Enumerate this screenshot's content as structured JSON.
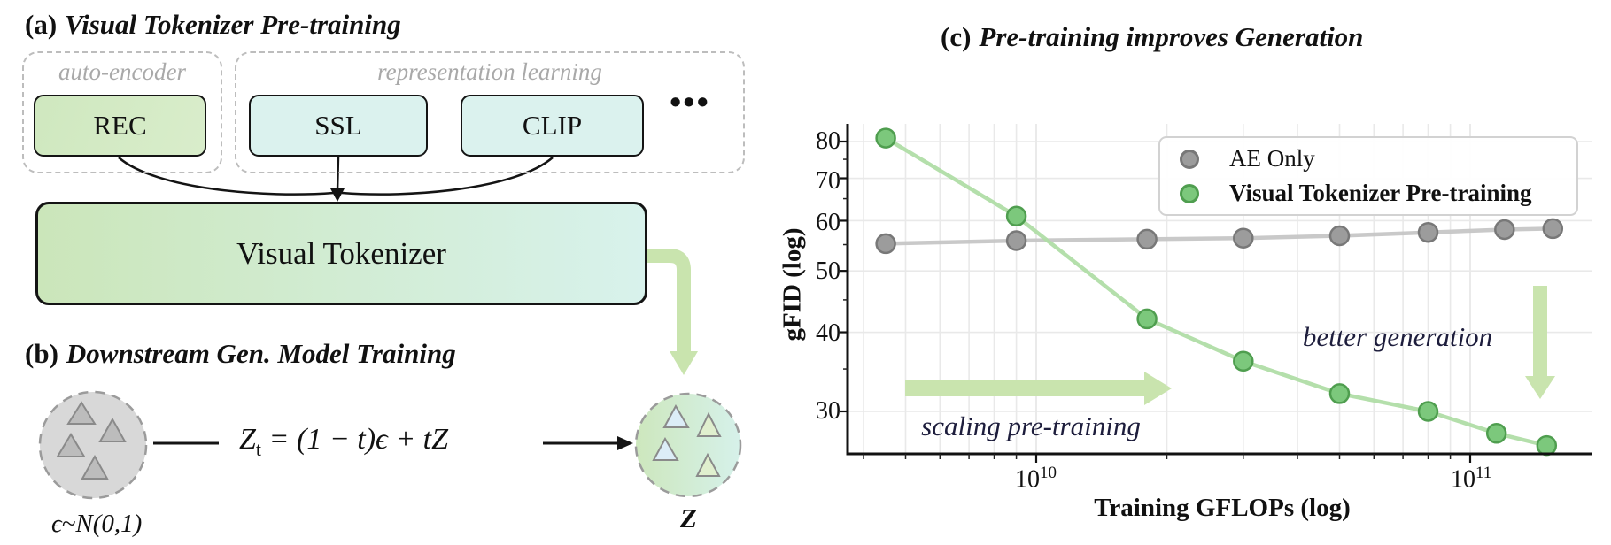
{
  "panel_a": {
    "title_prefix": "(a)",
    "title": "Visual Tokenizer Pre-training",
    "auto_encoder_group": {
      "label": "auto-encoder",
      "box": "REC"
    },
    "repr_learning_group": {
      "label": "representation learning",
      "boxes": [
        "SSL",
        "CLIP"
      ],
      "ellipsis": "•••"
    },
    "tokenizer_box": "Visual Tokenizer"
  },
  "panel_b": {
    "title_prefix": "(b)",
    "title": "Downstream Gen. Model Training",
    "noise_label": "ϵ~N(0,1)",
    "equation": {
      "var": "Z",
      "sub": "t",
      "rest": " = (1 − t)ϵ + tZ"
    },
    "latent_label": "Z"
  },
  "panel_c": {
    "title_prefix": "(c)",
    "title": "Pre-training improves Generation"
  },
  "chart_data": {
    "type": "line",
    "xlabel": "Training GFLOPs (log)",
    "ylabel": "gFID (log)",
    "x_scale": "log",
    "y_scale": "log",
    "x_range": [
      3700000000.0,
      190000000000.0
    ],
    "y_range": [
      25.5,
      86
    ],
    "y_ticks": [
      80,
      70,
      60,
      50,
      40,
      30
    ],
    "y_minor_ticks": [
      75,
      65,
      55,
      45,
      35
    ],
    "x_ticks": [
      {
        "base": "10",
        "exp": "10",
        "value": 10000000000.0
      },
      {
        "base": "10",
        "exp": "11",
        "value": 100000000000.0
      }
    ],
    "grid": true,
    "legend_position": "upper right",
    "series": [
      {
        "name": "AE Only",
        "marker_color": "#9c9c9c",
        "edge_color": "#787878",
        "line_color": "#c6c6c6",
        "x": [
          4500000000.0,
          9000000000.0,
          18000000000.0,
          30000000000.0,
          50000000000.0,
          80000000000.0,
          120000000000.0,
          155000000000.0
        ],
        "y": [
          55.2,
          55.8,
          56.1,
          56.3,
          56.8,
          57.5,
          58.1,
          58.3
        ]
      },
      {
        "name": "Visual Tokenizer Pre-training",
        "marker_color": "#7cc87c",
        "edge_color": "#4f9e4f",
        "line_color": "#b0dda7",
        "x": [
          4500000000.0,
          9000000000.0,
          18000000000.0,
          30000000000.0,
          50000000000.0,
          80000000000.0,
          115000000000.0,
          150000000000.0
        ],
        "y": [
          81,
          61,
          42,
          36,
          32,
          30,
          27.7,
          26.5
        ]
      }
    ],
    "annotations": [
      {
        "text": "scaling pre-training",
        "style": "italic"
      },
      {
        "text": "better generation",
        "style": "italic"
      }
    ],
    "accent_green": "#c9e4ae"
  }
}
